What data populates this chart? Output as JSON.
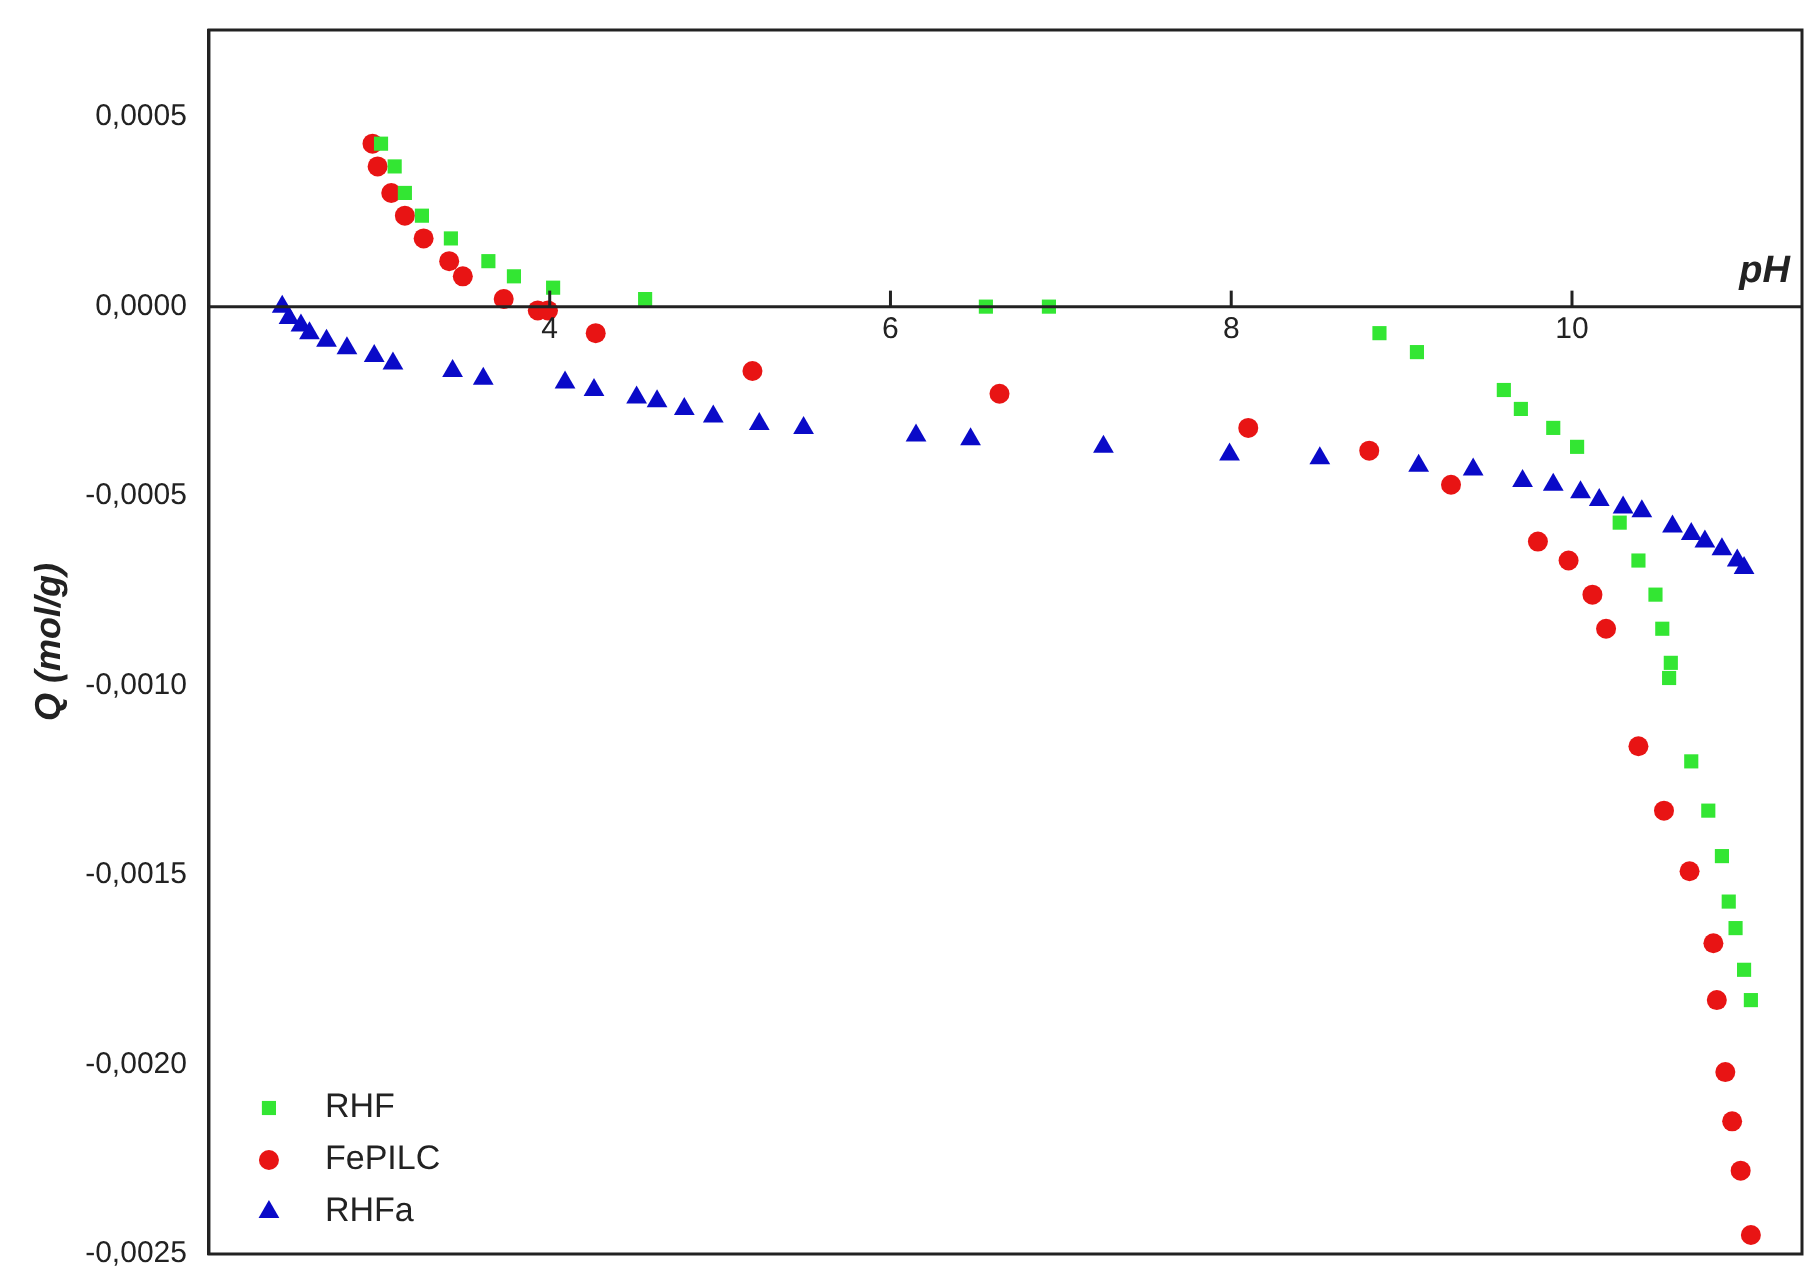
{
  "chart_data": {
    "type": "scatter",
    "xlabel": "pH",
    "ylabel": "Q (mol/g)",
    "xlim": [
      2,
      11.35
    ],
    "ylim": [
      -0.0025,
      0.00073
    ],
    "xticks": [
      4,
      6,
      8,
      10
    ],
    "yticks": [
      {
        "value": 0.0005,
        "label": "0,0005"
      },
      {
        "value": 0,
        "label": "0,0000"
      },
      {
        "value": -0.0005,
        "label": "-0,0005"
      },
      {
        "value": -0.001,
        "label": "-0,0010"
      },
      {
        "value": -0.0015,
        "label": "-0,0015"
      },
      {
        "value": -0.002,
        "label": "-0,0020"
      },
      {
        "value": -0.0025,
        "label": "-0,0025"
      }
    ],
    "grid": false,
    "legend": "bottom left",
    "series": [
      {
        "name": "RHF",
        "color": "#33e633",
        "marker": "square",
        "x": [
          3.01,
          3.09,
          3.15,
          3.25,
          3.42,
          3.64,
          3.79,
          4.02,
          4.56,
          6.56,
          6.93,
          8.87,
          9.09,
          9.6,
          9.7,
          9.89,
          10.03,
          10.28,
          10.39,
          10.49,
          10.53,
          10.58,
          10.57,
          10.7,
          10.8,
          10.88,
          10.92,
          10.96,
          11.01,
          11.05
        ],
        "values": [
          0.00043,
          0.00037,
          0.0003,
          0.00024,
          0.00018,
          0.00012,
          8e-05,
          5e-05,
          2e-05,
          0,
          0,
          -7e-05,
          -0.00012,
          -0.00022,
          -0.00027,
          -0.00032,
          -0.00037,
          -0.00057,
          -0.00067,
          -0.00076,
          -0.00085,
          -0.00094,
          -0.00098,
          -0.0012,
          -0.00133,
          -0.00145,
          -0.00157,
          -0.00164,
          -0.00175,
          -0.00183
        ]
      },
      {
        "name": "FePILC",
        "color": "#e81414",
        "marker": "circle",
        "x": [
          2.96,
          2.99,
          3.07,
          3.15,
          3.26,
          3.41,
          3.49,
          3.73,
          3.93,
          3.99,
          4.27,
          5.19,
          6.64,
          8.1,
          8.81,
          9.29,
          9.8,
          9.98,
          10.12,
          10.2,
          10.39,
          10.54,
          10.69,
          10.83,
          10.85,
          10.9,
          10.94,
          10.99,
          11.05
        ],
        "values": [
          0.00043,
          0.00037,
          0.0003,
          0.00024,
          0.00018,
          0.00012,
          8e-05,
          2e-05,
          -1e-05,
          -1e-05,
          -7e-05,
          -0.00017,
          -0.00023,
          -0.00032,
          -0.00038,
          -0.00047,
          -0.00062,
          -0.00067,
          -0.00076,
          -0.00085,
          -0.00116,
          -0.00133,
          -0.00149,
          -0.00168,
          -0.00183,
          -0.00202,
          -0.00215,
          -0.00228,
          -0.00245
        ]
      },
      {
        "name": "RHFa",
        "color": "#0a0ac8",
        "marker": "triangle",
        "x": [
          2.43,
          2.47,
          2.54,
          2.59,
          2.69,
          2.81,
          2.97,
          3.08,
          3.43,
          3.61,
          4.09,
          4.26,
          4.51,
          4.63,
          4.79,
          4.96,
          5.23,
          5.49,
          6.15,
          6.47,
          7.25,
          7.99,
          8.52,
          9.1,
          9.42,
          9.71,
          9.89,
          10.05,
          10.16,
          10.3,
          10.41,
          10.59,
          10.7,
          10.78,
          10.88,
          10.97,
          11.01
        ],
        "values": [
          0,
          -3e-05,
          -5e-05,
          -7e-05,
          -9e-05,
          -0.00011,
          -0.00013,
          -0.00015,
          -0.00017,
          -0.00019,
          -0.0002,
          -0.00022,
          -0.00024,
          -0.00025,
          -0.00027,
          -0.00029,
          -0.00031,
          -0.00032,
          -0.00034,
          -0.00035,
          -0.00037,
          -0.00039,
          -0.0004,
          -0.00042,
          -0.00043,
          -0.00046,
          -0.00047,
          -0.00049,
          -0.00051,
          -0.00053,
          -0.00054,
          -0.00058,
          -0.0006,
          -0.00062,
          -0.00064,
          -0.00067,
          -0.00069
        ]
      }
    ]
  }
}
